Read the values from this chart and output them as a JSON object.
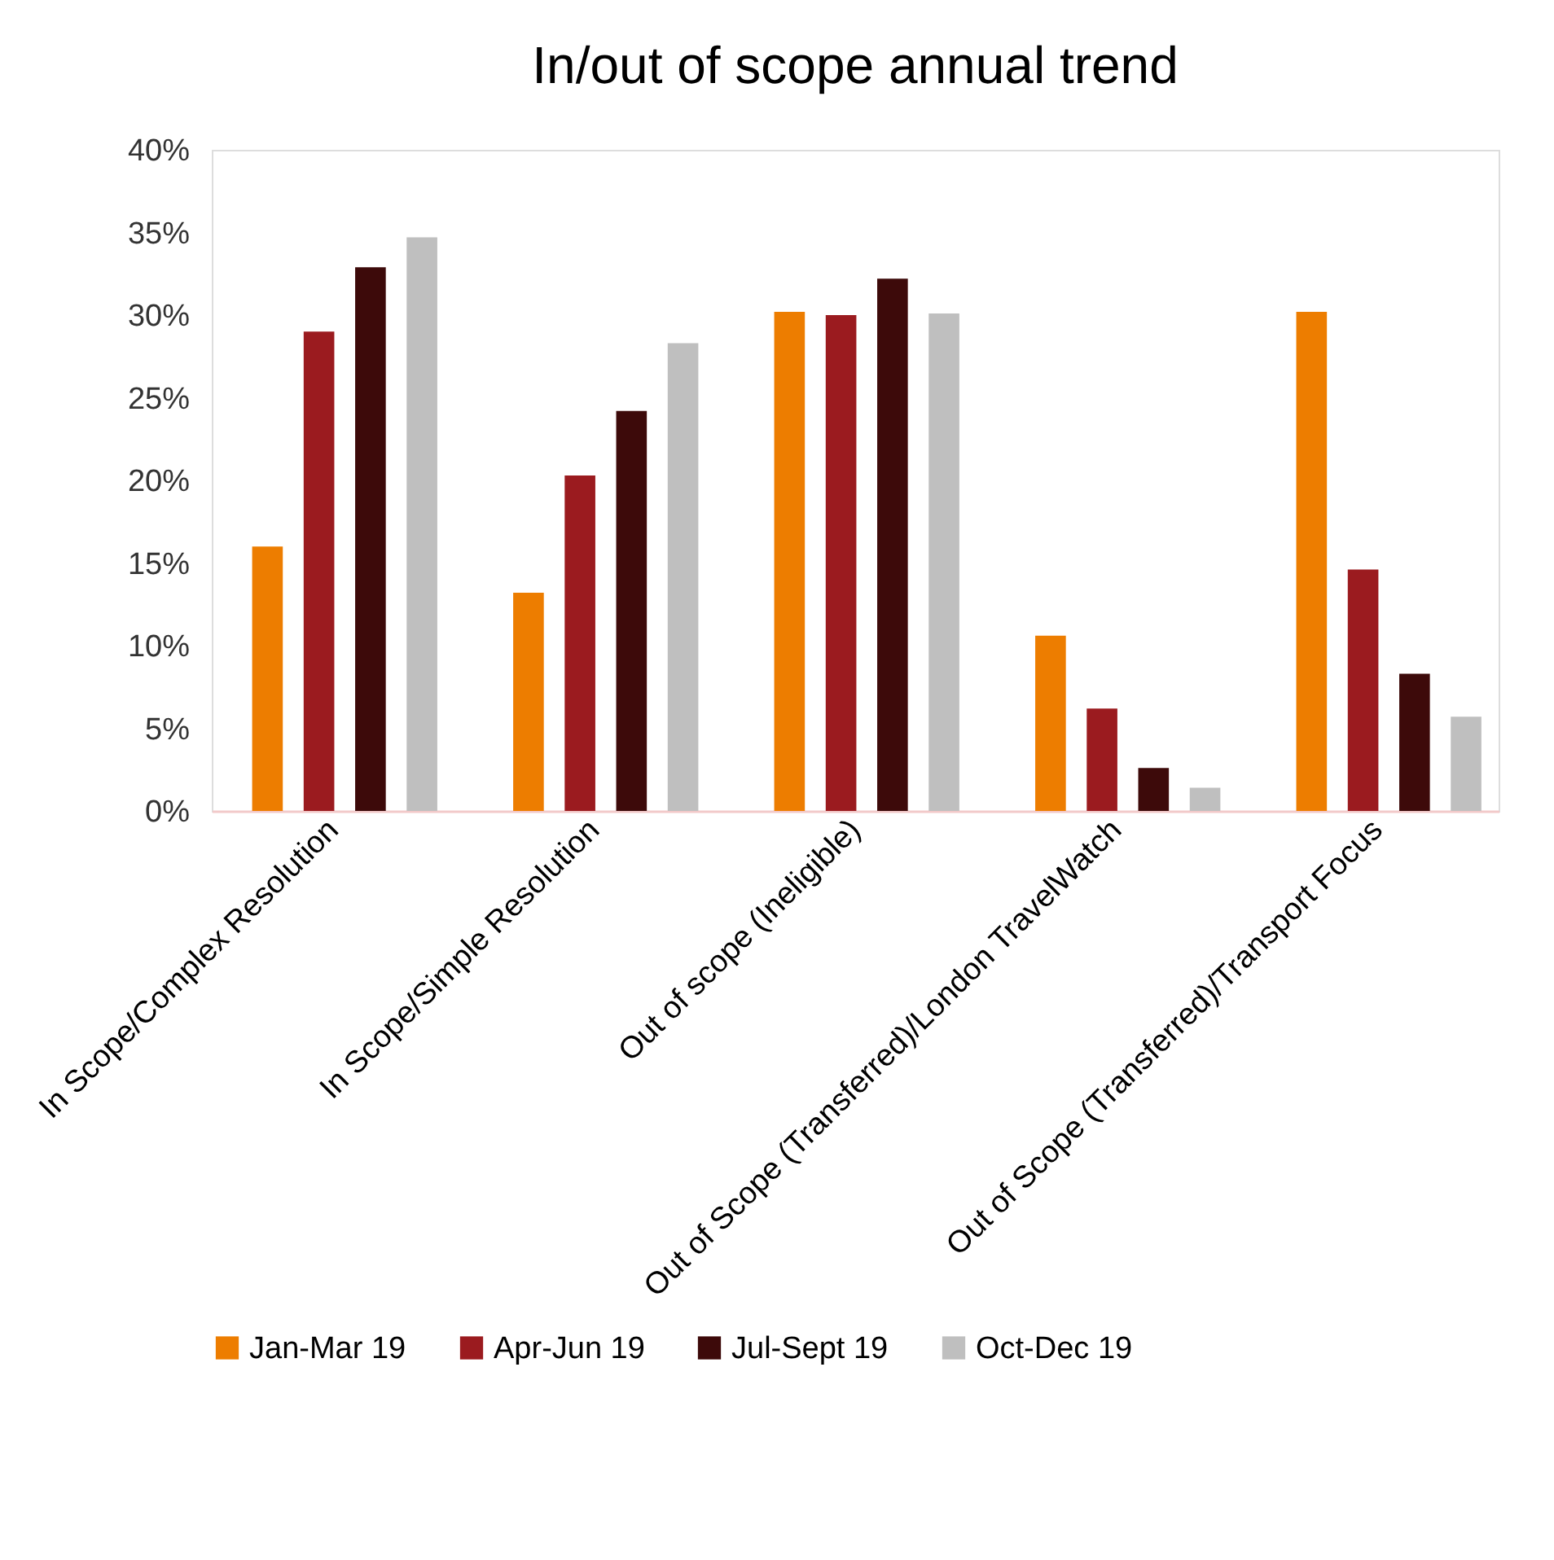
{
  "chart_data": {
    "type": "bar",
    "title": "In/out of scope annual trend",
    "categories": [
      "In Scope/Complex Resolution",
      "In Scope/Simple Resolution",
      "Out of scope (Ineligible)",
      "Out of Scope (Transferred)/London TravelWatch",
      "Out of Scope (Transferred)/Transport Focus"
    ],
    "series": [
      {
        "name": "Jan-Mar 19",
        "color": "#ed7d00",
        "values": [
          16.0,
          13.2,
          30.2,
          10.6,
          30.2
        ]
      },
      {
        "name": "Apr-Jun 19",
        "color": "#9b1b1f",
        "values": [
          29.0,
          20.3,
          30.0,
          6.2,
          14.6
        ]
      },
      {
        "name": "Jul-Sept 19",
        "color": "#3d0a0a",
        "values": [
          32.9,
          24.2,
          32.2,
          2.6,
          8.3
        ]
      },
      {
        "name": "Oct-Dec 19",
        "color": "#bfbfbf",
        "values": [
          34.7,
          28.3,
          30.1,
          1.4,
          5.7
        ]
      }
    ],
    "ylim": [
      0,
      40
    ],
    "yticks": [
      {
        "value": 0,
        "label": "0%"
      },
      {
        "value": 5,
        "label": "5%"
      },
      {
        "value": 10,
        "label": "10%"
      },
      {
        "value": 15,
        "label": "15%"
      },
      {
        "value": 20,
        "label": "20%"
      },
      {
        "value": 25,
        "label": "25%"
      },
      {
        "value": 30,
        "label": "30%"
      },
      {
        "value": 35,
        "label": "35%"
      },
      {
        "value": 40,
        "label": "40%"
      }
    ],
    "grid": false,
    "legend": "bottom"
  }
}
